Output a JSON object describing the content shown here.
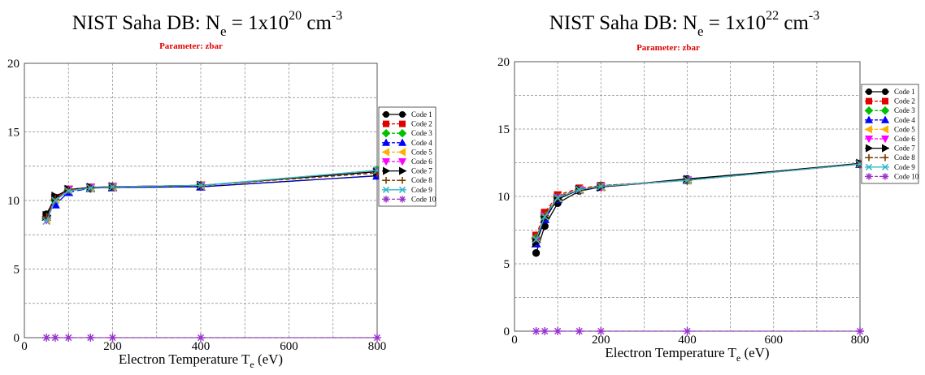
{
  "chart_data": [
    {
      "type": "line",
      "title": {
        "main": "NIST Saha DB: N",
        "sub": "e",
        "mid": " =  1x10",
        "sup": "20",
        "unit": " cm",
        "unit_sup": "-3"
      },
      "subtitle": "Parameter: zbar",
      "xlabel": {
        "main": "Electron Temperature T",
        "sub": "e",
        "tail": " (eV)"
      },
      "xlim": [
        0,
        800
      ],
      "ylim": [
        0,
        20
      ],
      "xticks": [
        0,
        200,
        400,
        600,
        800
      ],
      "yticks": [
        0,
        5,
        10,
        15,
        20
      ],
      "grid": true,
      "legend_position": "right",
      "x": [
        50,
        70,
        100,
        150,
        200,
        400,
        800
      ],
      "series": [
        {
          "name": "Code 1",
          "color": "#000000",
          "marker": "circle",
          "dash": "solid",
          "values": [
            9.0,
            10.2,
            10.8,
            10.9,
            10.95,
            11.0,
            11.8
          ]
        },
        {
          "name": "Code 2",
          "color": "#e00000",
          "marker": "square",
          "dash": "dash",
          "values": [
            8.8,
            10.2,
            10.8,
            10.95,
            11.0,
            11.1,
            12.1
          ]
        },
        {
          "name": "Code 3",
          "color": "#00c000",
          "marker": "diamond",
          "dash": "dash",
          "values": [
            8.7,
            10.0,
            10.7,
            10.9,
            11.0,
            11.1,
            12.2
          ]
        },
        {
          "name": "Code 4",
          "color": "#0000ff",
          "marker": "triangle-up",
          "dash": "longdash",
          "values": [
            8.8,
            9.7,
            10.6,
            10.9,
            10.95,
            11.0,
            11.8
          ]
        },
        {
          "name": "Code 5",
          "color": "#ffb000",
          "marker": "triangle-left",
          "dash": "dash",
          "values": [
            8.6,
            10.1,
            10.8,
            10.9,
            11.0,
            11.1,
            12.1
          ]
        },
        {
          "name": "Code 6",
          "color": "#ff00ff",
          "marker": "triangle-down",
          "dash": "dash",
          "values": [
            8.6,
            10.1,
            10.8,
            10.95,
            11.0,
            11.1,
            12.1
          ]
        },
        {
          "name": "Code 7",
          "color": "#000000",
          "marker": "triangle-right",
          "dash": "solid",
          "values": [
            8.9,
            10.3,
            10.8,
            10.95,
            11.0,
            11.1,
            12.1
          ]
        },
        {
          "name": "Code 8",
          "color": "#7a3d00",
          "marker": "plus",
          "dash": "dash",
          "values": [
            8.8,
            10.1,
            10.8,
            10.9,
            11.0,
            11.1,
            12.0
          ]
        },
        {
          "name": "Code 9",
          "color": "#33b7c7",
          "marker": "x",
          "dash": "solid",
          "values": [
            8.5,
            10.0,
            10.7,
            10.9,
            11.0,
            11.1,
            12.2
          ]
        },
        {
          "name": "Code 10",
          "color": "#9933cc",
          "marker": "star",
          "dash": "dash",
          "values": [
            0,
            0,
            0,
            0,
            0,
            0,
            0
          ]
        }
      ]
    },
    {
      "type": "line",
      "title": {
        "main": "NIST Saha DB: N",
        "sub": "e",
        "mid": " =  1x10",
        "sup": "22",
        "unit": " cm",
        "unit_sup": "-3"
      },
      "subtitle": "Parameter: zbar",
      "xlabel": {
        "main": "Electron Temperature T",
        "sub": "e",
        "tail": " (eV)"
      },
      "xlim": [
        0,
        800
      ],
      "ylim": [
        0,
        20
      ],
      "xticks": [
        0,
        200,
        400,
        600,
        800
      ],
      "yticks": [
        0,
        5,
        10,
        15,
        20
      ],
      "grid": true,
      "legend_position": "right",
      "x": [
        50,
        70,
        100,
        150,
        200,
        400,
        800
      ],
      "series": [
        {
          "name": "Code 1",
          "color": "#000000",
          "marker": "circle",
          "dash": "solid",
          "values": [
            5.8,
            7.8,
            9.5,
            10.4,
            10.7,
            11.3,
            12.4
          ]
        },
        {
          "name": "Code 2",
          "color": "#e00000",
          "marker": "square",
          "dash": "dash",
          "values": [
            7.1,
            8.8,
            10.1,
            10.6,
            10.8,
            11.2,
            12.4
          ]
        },
        {
          "name": "Code 3",
          "color": "#00c000",
          "marker": "diamond",
          "dash": "dash",
          "values": [
            6.9,
            8.5,
            9.9,
            10.5,
            10.75,
            11.2,
            12.4
          ]
        },
        {
          "name": "Code 4",
          "color": "#0000ff",
          "marker": "triangle-up",
          "dash": "longdash",
          "values": [
            6.5,
            8.3,
            9.8,
            10.5,
            10.7,
            11.25,
            12.4
          ]
        },
        {
          "name": "Code 5",
          "color": "#ffb000",
          "marker": "triangle-left",
          "dash": "dash",
          "values": [
            6.8,
            8.6,
            9.9,
            10.5,
            10.7,
            11.2,
            12.4
          ]
        },
        {
          "name": "Code 6",
          "color": "#ff00ff",
          "marker": "triangle-down",
          "dash": "dash",
          "values": [
            6.7,
            8.5,
            9.9,
            10.5,
            10.7,
            11.2,
            12.4
          ]
        },
        {
          "name": "Code 7",
          "color": "#000000",
          "marker": "triangle-right",
          "dash": "solid",
          "values": [
            6.6,
            8.4,
            9.8,
            10.5,
            10.7,
            11.25,
            12.45
          ]
        },
        {
          "name": "Code 8",
          "color": "#7a3d00",
          "marker": "plus",
          "dash": "dash",
          "values": [
            6.9,
            8.6,
            10.0,
            10.5,
            10.8,
            11.2,
            12.4
          ]
        },
        {
          "name": "Code 9",
          "color": "#33b7c7",
          "marker": "x",
          "dash": "solid",
          "values": [
            6.8,
            8.5,
            9.9,
            10.5,
            10.75,
            11.2,
            12.4
          ]
        },
        {
          "name": "Code 10",
          "color": "#9933cc",
          "marker": "star",
          "dash": "dash",
          "values": [
            0,
            0,
            0,
            0,
            0,
            0,
            0
          ]
        }
      ]
    }
  ]
}
